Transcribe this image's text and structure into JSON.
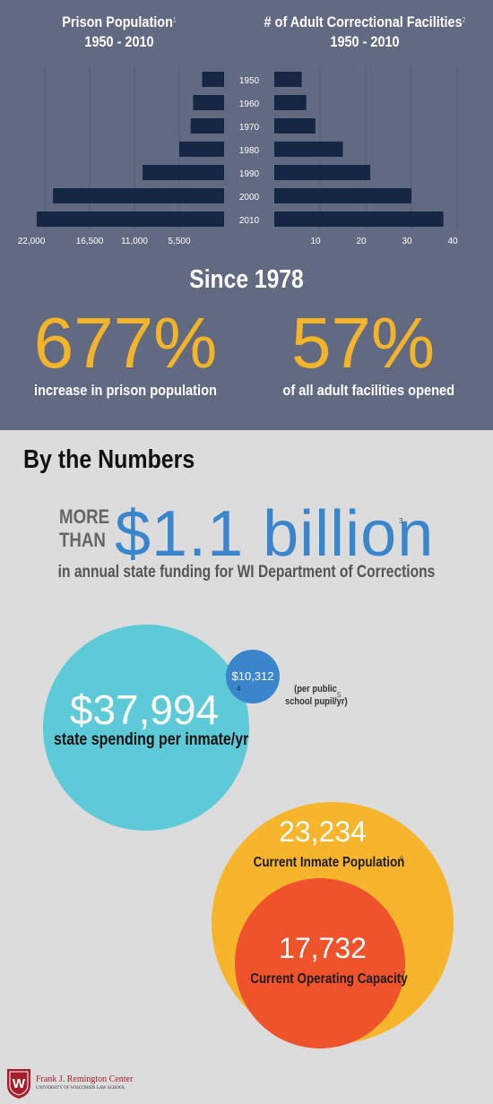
{
  "colors": {
    "top_bg": "#626a82",
    "bar": "#152745",
    "accent_yellow": "#f4b42a",
    "blue": "#3a86cd",
    "teal": "#5ccad7",
    "orange_circle": "#f7b52c",
    "red_circle": "#ef532c"
  },
  "header": {
    "left_title_line1": "Prison Population",
    "left_title_line2": "1950 - 2010",
    "left_footnote": "1",
    "right_title_line1": "# of Adult Correctional Facilities",
    "right_title_line2": "1950 - 2010",
    "right_footnote": "2"
  },
  "chart_data": [
    {
      "type": "bar",
      "orientation": "horizontal",
      "direction": "right-to-left",
      "title": "Prison Population 1950 - 2010",
      "categories": [
        "1950",
        "1960",
        "1970",
        "1980",
        "1990",
        "2000",
        "2010"
      ],
      "values": [
        2700,
        3800,
        4100,
        5500,
        10000,
        21000,
        23000
      ],
      "xlim": [
        0,
        24000
      ],
      "xticks": [
        22000,
        16500,
        11000,
        5500
      ],
      "xtick_labels": [
        "22,000",
        "16,500",
        "11,000",
        "5,500"
      ],
      "grid": true
    },
    {
      "type": "bar",
      "orientation": "horizontal",
      "title": "# of Adult Correctional Facilities 1950 - 2010",
      "categories": [
        "1950",
        "1960",
        "1970",
        "1980",
        "1990",
        "2000",
        "2010"
      ],
      "values": [
        6,
        7,
        9,
        15,
        21,
        30,
        37
      ],
      "xlim": [
        0,
        40
      ],
      "xticks": [
        10,
        20,
        30,
        40
      ],
      "xtick_labels": [
        "10",
        "20",
        "30",
        "40"
      ],
      "grid": true
    }
  ],
  "since": {
    "heading": "Since 1978",
    "left_pct": "677%",
    "left_label": "increase in prison population",
    "right_pct": "57%",
    "right_label": "of all adult facilities opened"
  },
  "numbers": {
    "heading": "By the Numbers",
    "more": "MORE",
    "than": "THAN",
    "amount": "$1.1 billion",
    "amount_footnote": "3",
    "funding_label": "in annual state funding for WI Department of Corrections",
    "inmate_spend": "$37,994",
    "inmate_spend_footnote": "4",
    "inmate_spend_label": "state spending per inmate/yr",
    "pupil_spend": "$10,312",
    "pupil_label_line1": "(per public",
    "pupil_label_line2": "school pupil/yr)",
    "pupil_footnote": "5",
    "population": "23,234",
    "population_label": "Current Inmate Population",
    "population_footnote": "6",
    "capacity": "17,732",
    "capacity_label": "Current Operating Capacity",
    "capacity_footnote": "7"
  },
  "logo": {
    "name": "Frank J. Remington Center",
    "sub": "UNIVERSITY OF WISCONSIN LAW SCHOOL",
    "mark": "W"
  }
}
